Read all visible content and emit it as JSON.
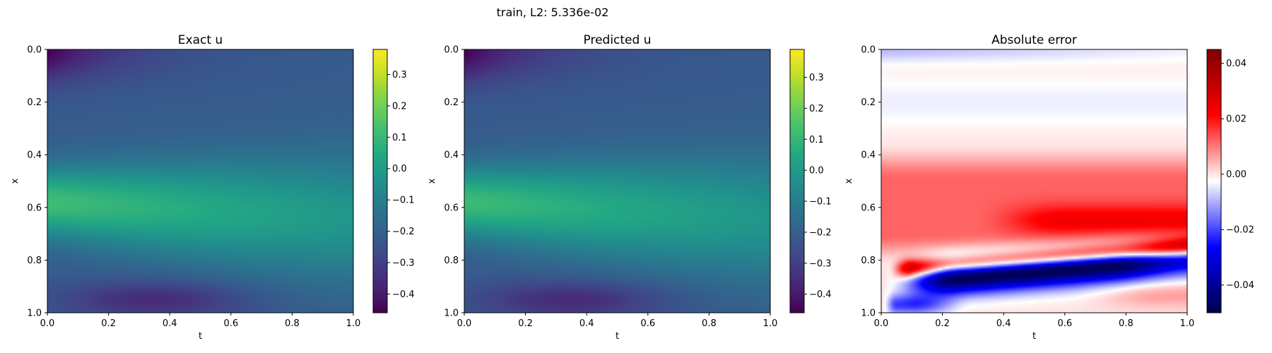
{
  "figure_title": "train, L2: 5.336e-02",
  "chart_data": [
    {
      "type": "heatmap",
      "title": "Exact u",
      "xlabel": "t",
      "ylabel": "x",
      "xlim": [
        0.0,
        1.0
      ],
      "ylim": [
        1.0,
        0.0
      ],
      "xticks": [
        "0.0",
        "0.2",
        "0.4",
        "0.6",
        "0.8",
        "1.0"
      ],
      "yticks": [
        "0.0",
        "0.2",
        "0.4",
        "0.6",
        "0.8",
        "1.0"
      ],
      "colormap": "viridis",
      "colorbar": {
        "vmin": -0.46,
        "vmax": 0.38,
        "ticks": [
          0.3,
          0.2,
          0.1,
          0.0,
          -0.1,
          -0.2,
          -0.3,
          -0.4
        ],
        "tick_labels": [
          "0.3",
          "0.2",
          "0.1",
          "0.0",
          "−0.1",
          "−0.2",
          "−0.3",
          "−0.4"
        ]
      }
    },
    {
      "type": "heatmap",
      "title": "Predicted u",
      "xlabel": "t",
      "ylabel": "x",
      "xlim": [
        0.0,
        1.0
      ],
      "ylim": [
        1.0,
        0.0
      ],
      "xticks": [
        "0.0",
        "0.2",
        "0.4",
        "0.6",
        "0.8",
        "1.0"
      ],
      "yticks": [
        "0.0",
        "0.2",
        "0.4",
        "0.6",
        "0.8",
        "1.0"
      ],
      "colormap": "viridis",
      "colorbar": {
        "vmin": -0.46,
        "vmax": 0.39,
        "ticks": [
          0.3,
          0.2,
          0.1,
          0.0,
          -0.1,
          -0.2,
          -0.3,
          -0.4
        ],
        "tick_labels": [
          "0.3",
          "0.2",
          "0.1",
          "0.0",
          "−0.1",
          "−0.2",
          "−0.3",
          "−0.4"
        ]
      }
    },
    {
      "type": "heatmap",
      "title": "Absolute error",
      "xlabel": "t",
      "ylabel": "x",
      "xlim": [
        0.0,
        1.0
      ],
      "ylim": [
        1.0,
        0.0
      ],
      "xticks": [
        "0.0",
        "0.2",
        "0.4",
        "0.6",
        "0.8",
        "1.0"
      ],
      "yticks": [
        "0.0",
        "0.2",
        "0.4",
        "0.6",
        "0.8",
        "1.0"
      ],
      "colormap": "seismic",
      "colorbar": {
        "vmin": -0.05,
        "vmax": 0.045,
        "ticks": [
          0.04,
          0.02,
          0.0,
          -0.02,
          -0.04
        ],
        "tick_labels": [
          "0.04",
          "0.02",
          "0.00",
          "−0.02",
          "−0.04"
        ]
      }
    }
  ]
}
